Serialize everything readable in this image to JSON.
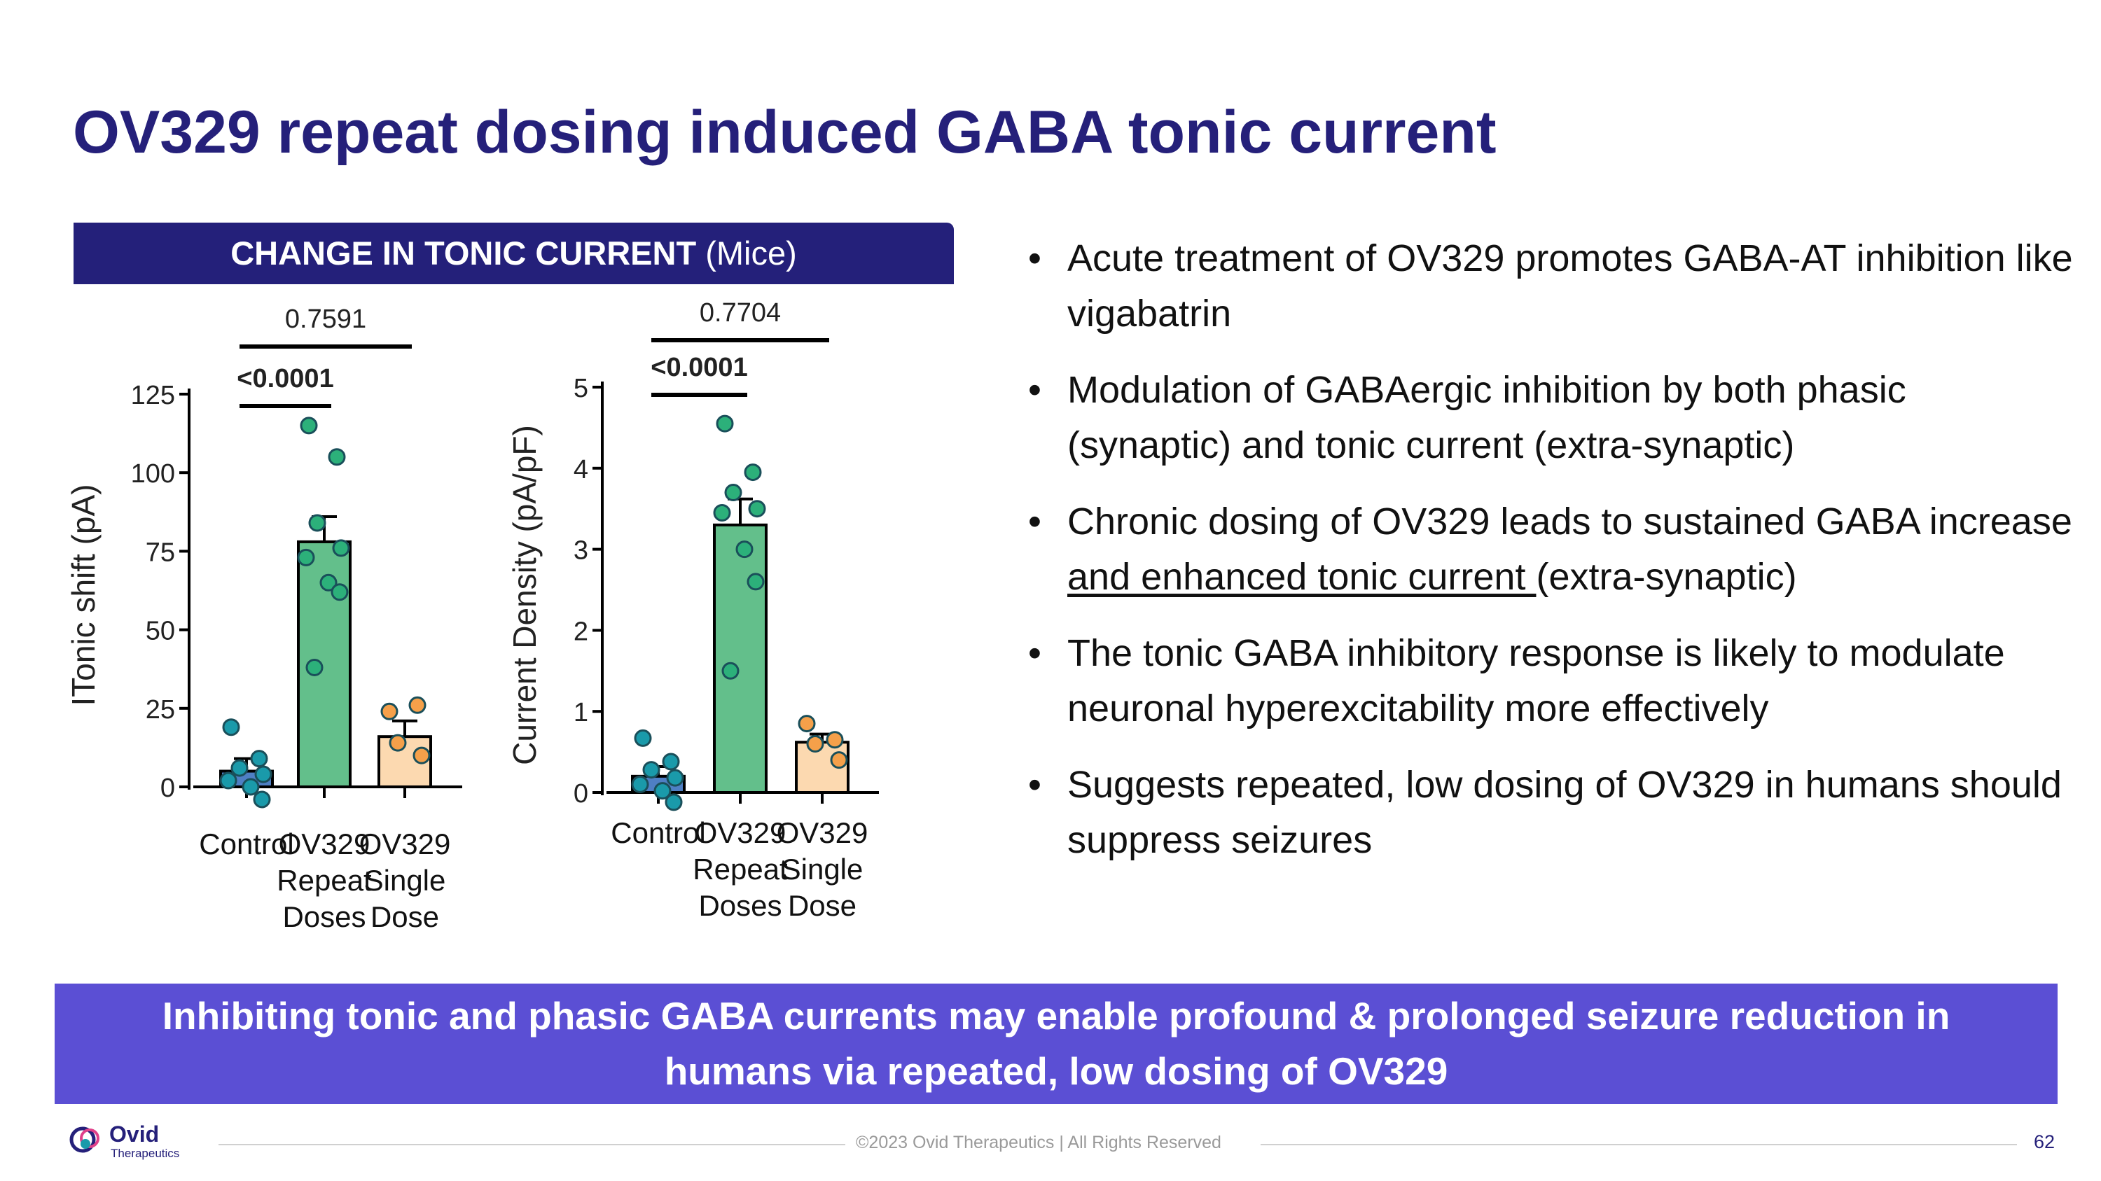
{
  "slide": {
    "title": "OV329 repeat dosing induced GABA tonic current",
    "chart_header_bold": "CHANGE IN TONIC CURRENT",
    "chart_header_sub": "(Mice)",
    "bullets": [
      {
        "text": "Acute treatment of OV329 promotes GABA-AT inhibition like vigabatrin"
      },
      {
        "text": "Modulation of GABAergic inhibition by both phasic (synaptic) and tonic current (extra-synaptic)"
      },
      {
        "text_before": "Chronic dosing of OV329 leads to sustained GABA increase ",
        "text_underlined": "and enhanced tonic current ",
        "text_after": "(extra-synaptic)"
      },
      {
        "text": "The tonic GABA inhibitory response is likely to modulate neuronal hyperexcitability more effectively"
      },
      {
        "text": "Suggests repeated, low dosing of OV329 in humans should suppress seizures"
      }
    ],
    "bullet_glyph": "•",
    "banner_line1": "Inhibiting tonic and phasic GABA currents may enable profound & prolonged seizure reduction in",
    "banner_line2": "humans via repeated, low dosing of OV329",
    "footer": "©2023 Ovid Therapeutics | All Rights Reserved",
    "page_number": "62",
    "logo_name": "Ovid",
    "logo_sub": "Therapeutics"
  },
  "colors": {
    "title": "#25207a",
    "header_bg": "#24207a",
    "banner_bg": "#5b4fd4",
    "control_fill": "#4f7fc4",
    "repeat_fill": "#63bf8b",
    "single_fill": "#fcd9b0",
    "control_dots": "#1a9aaa",
    "repeat_dots": "#2cb07a",
    "single_dots": "#f5a04a"
  },
  "chart_data": [
    {
      "type": "bar",
      "title": "",
      "ylabel": "ITonic shift (pA)",
      "xlabel": "",
      "ylim": [
        0,
        125
      ],
      "yticks": [
        0,
        25,
        50,
        75,
        100,
        125
      ],
      "categories": [
        "Control",
        "OV329 Repeat Doses",
        "OV329 Single Dose"
      ],
      "category_lines": [
        [
          "Control"
        ],
        [
          "OV329",
          "Repeat",
          "Doses"
        ],
        [
          "OV329",
          "Single",
          "Dose"
        ]
      ],
      "values": [
        5,
        78,
        16
      ],
      "errors": [
        4,
        8,
        5
      ],
      "points": [
        [
          19,
          9,
          6,
          4,
          2,
          0,
          -4
        ],
        [
          115,
          105,
          84,
          76,
          73,
          65,
          62,
          38
        ],
        [
          24,
          26,
          14,
          10
        ]
      ],
      "comparisons": [
        {
          "from": 0,
          "to": 1,
          "label": "<0.0001",
          "bold": true
        },
        {
          "from": 0,
          "to": 2,
          "label": "0.7591",
          "bold": false
        }
      ]
    },
    {
      "type": "bar",
      "title": "",
      "ylabel": "Current Density (pA/pF)",
      "xlabel": "",
      "ylim": [
        0,
        5
      ],
      "yticks": [
        0,
        1,
        2,
        3,
        4,
        5
      ],
      "categories": [
        "Control",
        "OV329 Repeat Doses",
        "OV329 Single Dose"
      ],
      "category_lines": [
        [
          "Control"
        ],
        [
          "OV329",
          "Repeat",
          "Doses"
        ],
        [
          "OV329",
          "Single",
          "Dose"
        ]
      ],
      "values": [
        0.2,
        3.3,
        0.62
      ],
      "errors": [
        0.12,
        0.32,
        0.1
      ],
      "points": [
        [
          0.67,
          0.38,
          0.28,
          0.18,
          0.1,
          0.02,
          -0.12
        ],
        [
          4.55,
          3.95,
          3.7,
          3.5,
          3.45,
          3.0,
          2.6,
          1.5
        ],
        [
          0.85,
          0.65,
          0.6,
          0.4
        ]
      ],
      "comparisons": [
        {
          "from": 0,
          "to": 1,
          "label": "<0.0001",
          "bold": true
        },
        {
          "from": 0,
          "to": 2,
          "label": "0.7704",
          "bold": false
        }
      ]
    }
  ]
}
